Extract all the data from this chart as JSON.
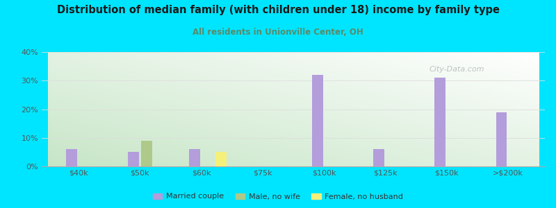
{
  "title": "Distribution of median family (with children under 18) income by family type",
  "subtitle": "All residents in Unionville Center, OH",
  "background_color": "#00e5ff",
  "categories": [
    "$40k",
    "$50k",
    "$60k",
    "$75k",
    "$100k",
    "$125k",
    "$150k",
    ">$200k"
  ],
  "married_couple": [
    6,
    5,
    6,
    0,
    32,
    6,
    31,
    19
  ],
  "male_no_wife": [
    0,
    9,
    0,
    0,
    0,
    0,
    0,
    0
  ],
  "female_no_husband": [
    0,
    0,
    5,
    0,
    0,
    0,
    0,
    0
  ],
  "married_color": "#b39ddb",
  "male_color": "#aec98a",
  "female_color": "#f5f07a",
  "ylim": [
    0,
    40
  ],
  "yticks": [
    0,
    10,
    20,
    30,
    40
  ],
  "ytick_labels": [
    "0%",
    "10%",
    "20%",
    "30%",
    "40%"
  ],
  "grid_color": "#dddddd",
  "legend_labels": [
    "Married couple",
    "Male, no wife",
    "Female, no husband"
  ],
  "watermark": "City-Data.com",
  "bar_width": 0.18,
  "title_color": "#1a1a1a",
  "subtitle_color": "#5a8a6a",
  "tick_color": "#555555"
}
